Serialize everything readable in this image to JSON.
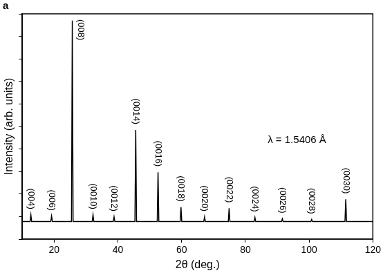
{
  "chart_data": {
    "type": "line",
    "title": "a",
    "x_label": "2θ (deg.)",
    "y_label": "Intensity (arb. units)",
    "color": "#000000",
    "x": [
      10,
      12.45,
      12.7,
      12.95,
      18.95,
      19.2,
      19.45,
      25.45,
      25.7,
      25.95,
      31.95,
      32.2,
      32.45,
      38.55,
      38.8,
      39.05,
      45.35,
      45.6,
      45.85,
      52.35,
      52.6,
      52.85,
      59.55,
      59.8,
      60.05,
      66.95,
      67.2,
      67.45,
      74.65,
      74.9,
      75.15,
      82.75,
      83.0,
      83.25,
      91.35,
      91.6,
      91.85,
      100.55,
      100.8,
      101.05,
      111.25,
      111.5,
      111.75,
      120
    ],
    "values": [
      7.8,
      7.8,
      10.8,
      7.8,
      7.8,
      10.2,
      7.8,
      7.8,
      97,
      7.8,
      7.8,
      10.8,
      7.8,
      7.8,
      9.9,
      7.8,
      7.8,
      48.5,
      7.8,
      7.8,
      29.7,
      7.8,
      7.8,
      14.2,
      7.8,
      7.8,
      9.9,
      7.8,
      7.8,
      13.7,
      7.8,
      7.8,
      9.6,
      7.8,
      7.8,
      9.0,
      7.8,
      7.8,
      8.7,
      7.8,
      7.8,
      17.7,
      7.8,
      7.8
    ],
    "xlim": [
      10,
      120
    ],
    "xticks": [
      20,
      40,
      60,
      80,
      100,
      120
    ],
    "ylim": [
      0,
      100
    ],
    "yticks": [
      0,
      10,
      20,
      30,
      40,
      50,
      60,
      70,
      80,
      90,
      100
    ],
    "tick_labels": "x",
    "grid": false,
    "annotations": [
      {
        "text": "λ = 1.5406 Å",
        "x": 87,
        "y": 44
      }
    ],
    "peak_labels": [
      {
        "text": "(004)",
        "x": 12.7
      },
      {
        "text": "(006)",
        "x": 19.2
      },
      {
        "text": "(008)",
        "x": 25.7
      },
      {
        "text": "(0010)",
        "x": 32.2
      },
      {
        "text": "(0012)",
        "x": 38.8
      },
      {
        "text": "(0014)",
        "x": 45.6
      },
      {
        "text": "(0016)",
        "x": 52.6
      },
      {
        "text": "(0018)",
        "x": 59.8
      },
      {
        "text": "(0020)",
        "x": 67.2
      },
      {
        "text": "(0022)",
        "x": 74.9
      },
      {
        "text": "(0024)",
        "x": 83.0
      },
      {
        "text": "(0026)",
        "x": 91.6
      },
      {
        "text": "(0028)",
        "x": 100.8
      },
      {
        "text": "(0030)",
        "x": 111.5
      }
    ]
  }
}
